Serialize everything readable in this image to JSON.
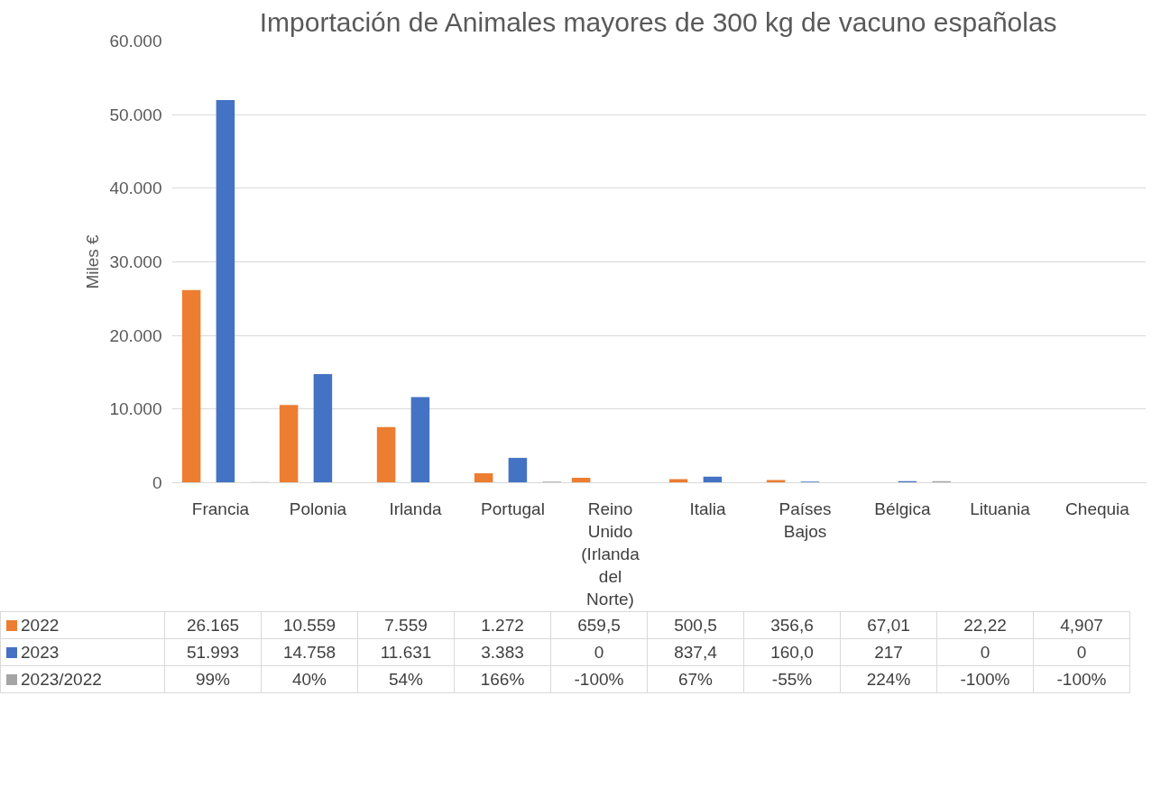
{
  "chart_data": {
    "type": "bar",
    "title": "Importación de Animales mayores de 300 kg de vacuno españolas",
    "ylabel": "Miles €",
    "categories": [
      "Francia",
      "Polonia",
      "Irlanda",
      "Portugal",
      "Reino Unido (Irlanda del Norte)",
      "Italia",
      "Países Bajos",
      "Bélgica",
      "Lituania",
      "Chequia"
    ],
    "series": [
      {
        "name": "2022",
        "color": "#ed7d31",
        "values": [
          26165,
          10559,
          7559,
          1272,
          659.5,
          500.5,
          356.6,
          67.01,
          22.22,
          4.907
        ],
        "value_labels": [
          "26.165",
          "10.559",
          "7.559",
          "1.272",
          "659,5",
          "500,5",
          "356,6",
          "67,01",
          "22,22",
          "4,907"
        ]
      },
      {
        "name": "2023",
        "color": "#4472c4",
        "values": [
          51993,
          14758,
          11631,
          3383,
          0,
          837.4,
          160.0,
          217,
          0,
          0
        ],
        "value_labels": [
          "51.993",
          "14.758",
          "11.631",
          "3.383",
          "0",
          "837,4",
          "160,0",
          "217",
          "0",
          "0"
        ]
      },
      {
        "name": "2023/2022",
        "color": "#a5a5a5",
        "values": [
          99,
          40,
          54,
          166,
          null,
          67,
          null,
          224,
          null,
          null
        ],
        "value_labels": [
          "99%",
          "40%",
          "54%",
          "166%",
          "-100%",
          "67%",
          "-55%",
          "224%",
          "-100%",
          "-100%"
        ]
      }
    ],
    "ylim": [
      0,
      60000
    ],
    "yticks": [
      0,
      {
        "value": 10000,
        "label": "10.000"
      },
      {
        "value": 20000,
        "label": "20.000"
      },
      {
        "value": 30000,
        "label": "30.000"
      },
      {
        "value": 40000,
        "label": "40.000"
      },
      {
        "value": 50000,
        "label": "50.000"
      },
      {
        "value": 60000,
        "label": "60.000"
      }
    ],
    "grid": "y",
    "legend": "bottom left"
  }
}
